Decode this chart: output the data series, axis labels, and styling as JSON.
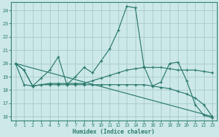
{
  "xlabel": "Humidex (Indice chaleur)",
  "bg_color": "#cce8e8",
  "grid_color": "#aacccc",
  "line_color": "#2a7a6a",
  "x_values": [
    0,
    1,
    2,
    3,
    4,
    5,
    6,
    7,
    8,
    9,
    10,
    11,
    12,
    13,
    14,
    15,
    16,
    17,
    18,
    19,
    20,
    21,
    22,
    23
  ],
  "series1": [
    20.0,
    19.5,
    18.3,
    18.9,
    19.5,
    20.5,
    18.4,
    19.0,
    19.7,
    19.3,
    20.2,
    21.1,
    22.5,
    24.3,
    24.2,
    19.8,
    18.3,
    18.6,
    20.0,
    20.1,
    18.7,
    16.9,
    16.1,
    15.9
  ],
  "series2": [
    20.0,
    18.4,
    18.3,
    18.4,
    18.5,
    18.5,
    18.5,
    18.5,
    18.5,
    18.7,
    18.9,
    19.1,
    19.3,
    19.5,
    19.6,
    19.7,
    19.7,
    19.7,
    19.6,
    19.5,
    19.5,
    19.5,
    19.4,
    19.3
  ],
  "series3": [
    20.0,
    19.5,
    18.3,
    18.4,
    18.4,
    18.4,
    18.4,
    18.4,
    18.4,
    18.4,
    18.4,
    18.4,
    18.4,
    18.4,
    18.4,
    18.4,
    18.3,
    18.2,
    18.1,
    17.9,
    17.7,
    17.4,
    16.9,
    16.0
  ],
  "series4_x": [
    0,
    23
  ],
  "series4_y": [
    20.0,
    16.0
  ],
  "ylim": [
    15.7,
    24.6
  ],
  "yticks": [
    16,
    17,
    18,
    19,
    20,
    21,
    22,
    23,
    24
  ],
  "xticks": [
    0,
    1,
    2,
    3,
    4,
    5,
    6,
    7,
    8,
    9,
    10,
    11,
    12,
    13,
    14,
    15,
    16,
    17,
    18,
    19,
    20,
    21,
    22,
    23
  ],
  "xtick_labels": [
    "0",
    "1",
    "2",
    "3",
    "4",
    "5",
    "6",
    "7",
    "8",
    "9",
    "10",
    "11",
    "12",
    "13",
    "14",
    "15",
    "16",
    "17",
    "18",
    "19",
    "20",
    "21",
    "22",
    "23"
  ]
}
